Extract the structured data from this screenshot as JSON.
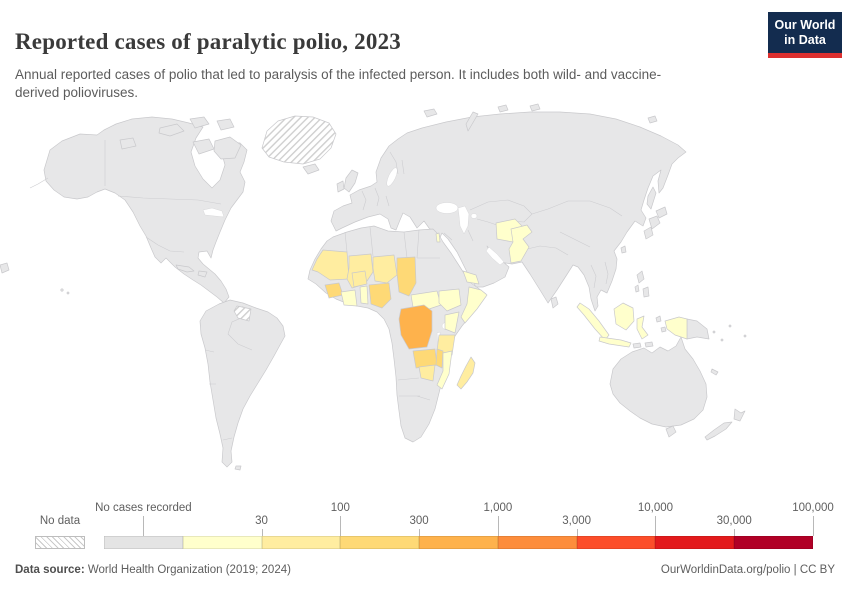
{
  "header": {
    "title": "Reported cases of paralytic polio, 2023",
    "subtitle": "Annual reported cases of polio that led to paralysis of the infected person. It includes both wild- and vaccine-derived polioviruses.",
    "logo": {
      "line1": "Our World",
      "line2": "in Data",
      "bg": "#132c4f",
      "accent": "#dc2f2f"
    }
  },
  "legend": {
    "no_data_label": "No data",
    "no_cases_label": "No cases recorded",
    "ticks": [
      "30",
      "100",
      "300",
      "1,000",
      "3,000",
      "10,000",
      "30,000",
      "100,000"
    ],
    "bin_colors_bar": [
      "#e4e4e4",
      "#ffffcc",
      "#ffeda0",
      "#fed976",
      "#feb24c",
      "#fd8d3c",
      "#fc4e2a",
      "#e31a1c",
      "#b10026"
    ]
  },
  "footer": {
    "source_label": "Data source:",
    "source_value": " World Health Organization (2019; 2024)",
    "credit_link": "OurWorldinData.org/polio",
    "separator": " | ",
    "license": "CC BY"
  },
  "map": {
    "land_color": "#e7e7e8",
    "border_color": "#c9c9cc",
    "ocean_color": "#ffffff",
    "bin_colors": {
      "no_cases": "#e7e7e8",
      "no_data": "url(#hatchPattern)",
      "bin1": "#ffffcc",
      "bin2": "#ffeda0",
      "bin3": "#fed976",
      "bin4": "#feb24c"
    },
    "country_fills": {
      "greenland": "no_data",
      "guyana-region": "no_data",
      "mauritania": "bin2",
      "mali": "bin2",
      "niger": "bin2",
      "burkina-faso": "bin2",
      "tanzania": "bin2",
      "zimbabwe": "bin2",
      "madagascar": "bin2",
      "guinea": "bin3",
      "chad": "bin3",
      "nigeria": "bin3",
      "zambia": "bin3",
      "malawi": "bin3",
      "dr-congo": "bin4",
      "cote-divoire": "bin1",
      "benin": "bin1",
      "central-african-republic": "bin1",
      "south-sudan": "bin1",
      "somalia": "bin1",
      "yemen": "bin1",
      "kenya": "bin1",
      "mozambique": "bin1",
      "afghanistan": "bin1",
      "pakistan": "bin1",
      "israel": "bin1",
      "indonesia": "bin1"
    }
  },
  "chart_data": {
    "type": "choropleth",
    "title": "Reported cases of paralytic polio, 2023",
    "metric": "Annual reported cases of polio that led to paralysis of the infected person (wild and vaccine-derived polioviruses)",
    "year": "2023",
    "legend_position": "bottom",
    "scale_type": "logarithmic bins",
    "scale_ticks": [
      "30",
      "100",
      "300",
      "1,000",
      "3,000",
      "10,000",
      "30,000",
      "100,000"
    ],
    "legend_bins": [
      {
        "label": "No data",
        "style": "hatched"
      },
      {
        "label": "No cases recorded",
        "color": "#e4e4e4"
      },
      {
        "range": "up to 30",
        "color": "#ffffcc"
      },
      {
        "range": "30-100",
        "color": "#ffeda0"
      },
      {
        "range": "100-300",
        "color": "#fed976"
      },
      {
        "range": "300-1,000",
        "color": "#feb24c"
      },
      {
        "range": "1,000-3,000",
        "color": "#fd8d3c"
      },
      {
        "range": "3,000-10,000",
        "color": "#fc4e2a"
      },
      {
        "range": "10,000-30,000",
        "color": "#e31a1c"
      },
      {
        "range": "30,000-100,000",
        "color": "#b10026"
      }
    ],
    "countries_by_bin": {
      "up_to_30": [
        "Pakistan",
        "Afghanistan",
        "Israel",
        "Indonesia",
        "Yemen",
        "Somalia",
        "Kenya",
        "Cote d'Ivoire",
        "Benin",
        "Central African Republic",
        "South Sudan",
        "Mozambique"
      ],
      "30_to_100": [
        "Mauritania",
        "Mali",
        "Niger",
        "Burkina Faso",
        "Tanzania",
        "Zimbabwe",
        "Madagascar"
      ],
      "100_to_300": [
        "Guinea",
        "Chad",
        "Nigeria",
        "Zambia",
        "Malawi"
      ],
      "300_to_1000": [
        "Democratic Republic of the Congo"
      ],
      "no_data": [
        "Greenland",
        "Guyana region"
      ],
      "all_other_countries": "No cases recorded"
    }
  }
}
